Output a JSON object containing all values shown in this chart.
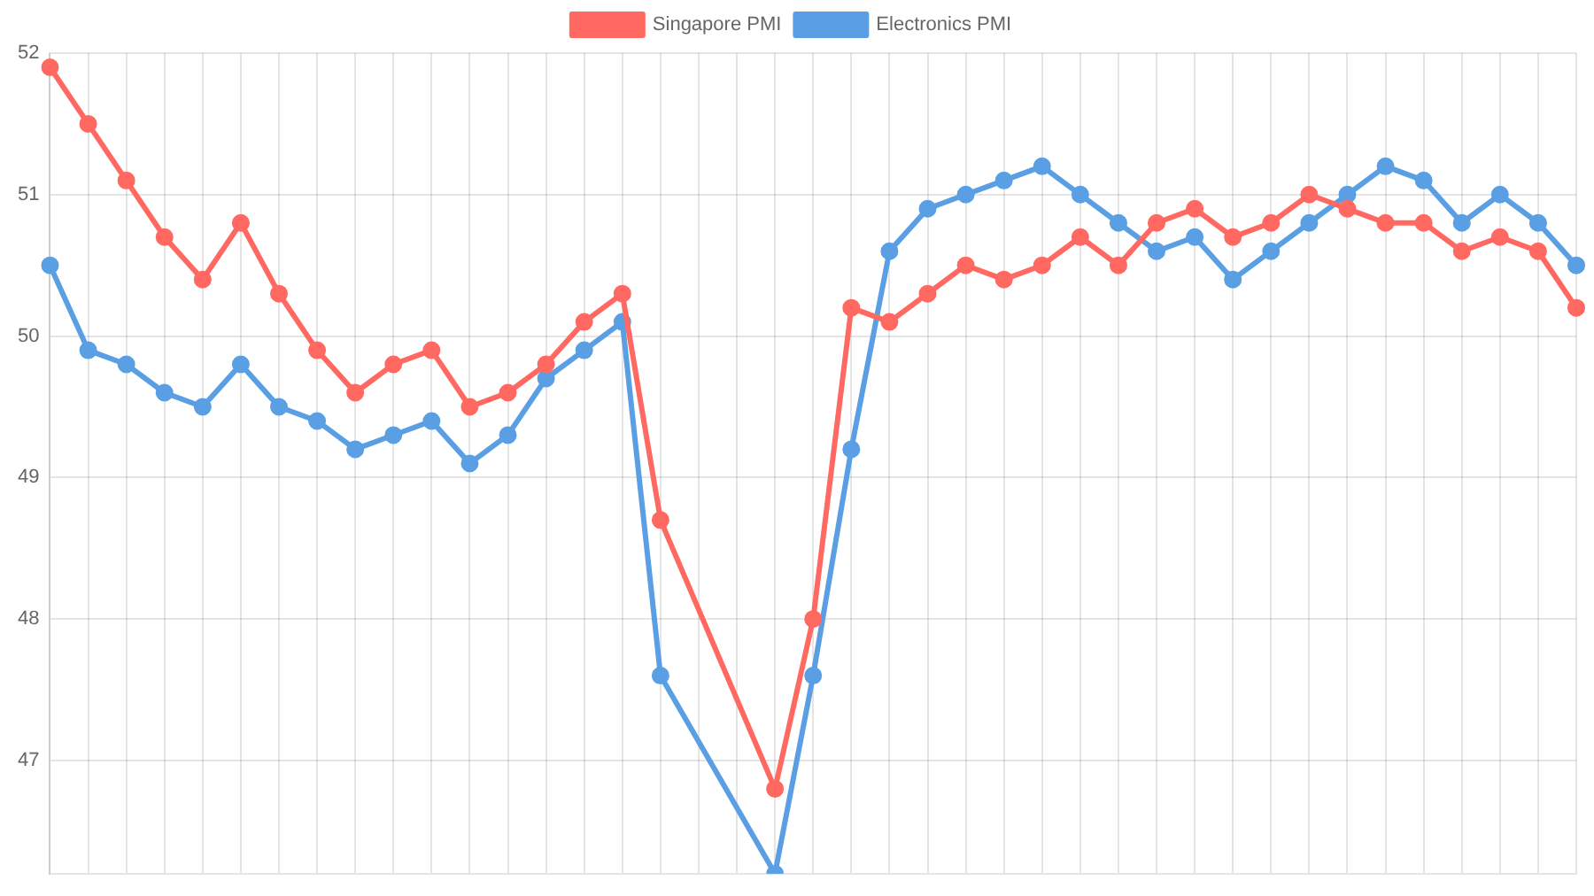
{
  "chart_data": {
    "type": "line",
    "categories": [
      null,
      null,
      null,
      null,
      null,
      null,
      null,
      null,
      null,
      null,
      null,
      null,
      null,
      null,
      null,
      null,
      null,
      null,
      null,
      null,
      null,
      null,
      null,
      null,
      null,
      null,
      null,
      null,
      null,
      null,
      null,
      null,
      null,
      null,
      null,
      null,
      null,
      null,
      null,
      null,
      null
    ],
    "series": [
      {
        "name": "Singapore PMI",
        "color": "#ff6961",
        "values": [
          51.9,
          51.5,
          51.1,
          50.7,
          50.4,
          50.8,
          50.3,
          49.9,
          49.6,
          49.8,
          49.9,
          49.5,
          49.6,
          49.8,
          50.1,
          50.3,
          48.7,
          null,
          null,
          46.8,
          48.0,
          50.2,
          50.1,
          50.3,
          50.5,
          50.4,
          50.5,
          50.7,
          50.5,
          50.8,
          50.9,
          50.7,
          50.8,
          51.0,
          50.9,
          50.8,
          50.8,
          50.6,
          50.7,
          50.6,
          50.2
        ]
      },
      {
        "name": "Electronics PMI",
        "color": "#5a9fe3",
        "values": [
          50.5,
          49.9,
          49.8,
          49.6,
          49.5,
          49.8,
          49.5,
          49.4,
          49.2,
          49.3,
          49.4,
          49.1,
          49.3,
          49.7,
          49.9,
          50.1,
          47.6,
          null,
          null,
          46.2,
          47.6,
          49.2,
          50.6,
          50.9,
          51.0,
          51.1,
          51.2,
          51.0,
          50.8,
          50.6,
          50.7,
          50.4,
          50.6,
          50.8,
          51.0,
          51.2,
          51.1,
          50.8,
          51.0,
          50.8,
          50.5
        ]
      }
    ],
    "ylim": [
      46.2,
      52
    ],
    "yticks": [
      47,
      48,
      49,
      50,
      51,
      52
    ],
    "grid": true,
    "legend": "top",
    "tick_labels": "y",
    "marker": "circle",
    "line_style": "solid"
  }
}
